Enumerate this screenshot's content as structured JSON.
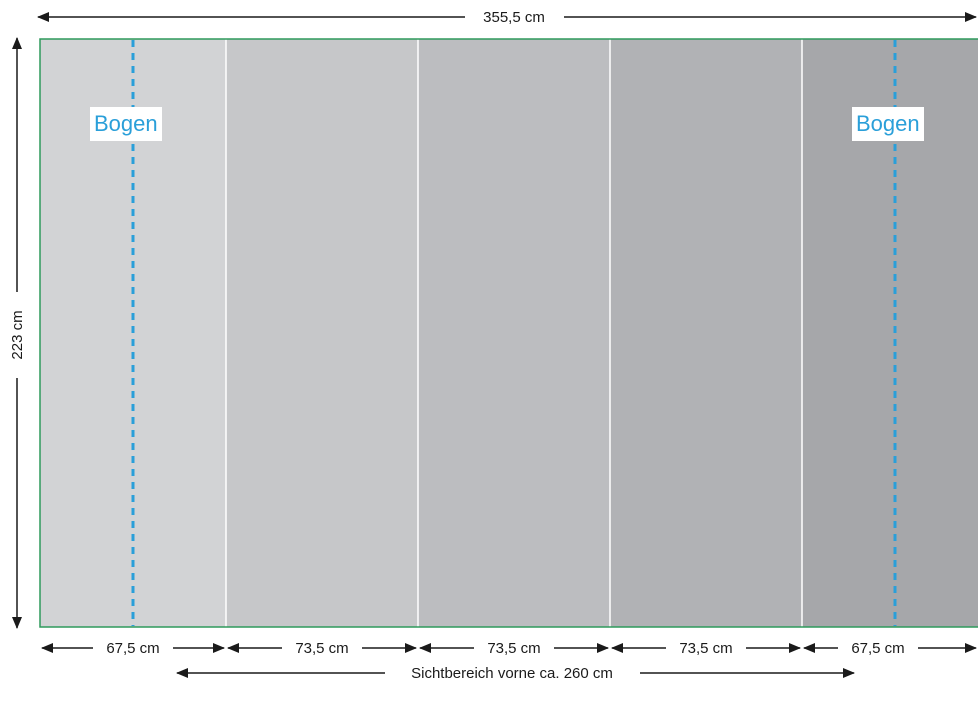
{
  "colors": {
    "panels": [
      "#d2d3d5",
      "#c6c7c9",
      "#bcbdc0",
      "#b1b2b5",
      "#a6a7aa"
    ],
    "frame": "#2e9a5c",
    "fold_line": "#2a9fd9",
    "dimension": "#1a1a1a"
  },
  "overall": {
    "width_label": "355,5 cm",
    "height_label": "223 cm"
  },
  "panels": [
    {
      "width_label": "67,5 cm",
      "fold_label": "Bogen"
    },
    {
      "width_label": "73,5 cm"
    },
    {
      "width_label": "73,5 cm"
    },
    {
      "width_label": "73,5 cm"
    },
    {
      "width_label": "67,5 cm",
      "fold_label": "Bogen"
    }
  ],
  "visible_area": {
    "label": "Sichtbereich vorne ca. 260 cm"
  }
}
